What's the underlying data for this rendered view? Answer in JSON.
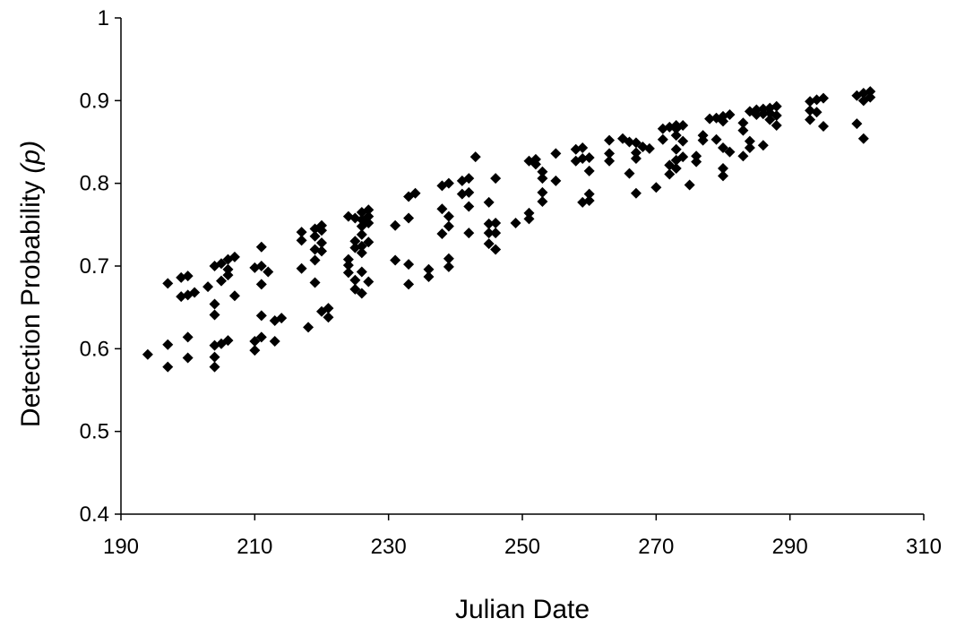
{
  "chart_data": {
    "type": "scatter",
    "title": "",
    "xlabel": "Julian Date",
    "ylabel_main": "Detection Probability ",
    "ylabel_symbol": "(p)",
    "xlim": [
      190,
      310
    ],
    "ylim": [
      0.4,
      1.0
    ],
    "x_ticks": [
      190,
      210,
      230,
      250,
      270,
      290,
      310
    ],
    "y_ticks": [
      0.4,
      0.5,
      0.6,
      0.7,
      0.8,
      0.9,
      1.0
    ],
    "x_tick_labels": [
      "190",
      "210",
      "230",
      "250",
      "270",
      "290",
      "310"
    ],
    "y_tick_labels": [
      "0.4",
      "0.5",
      "0.6",
      "0.7",
      "0.8",
      "0.9",
      "1"
    ],
    "grid": false,
    "legend": "none",
    "marker": "diamond",
    "marker_color": "#000000",
    "points": [
      [
        194,
        0.593
      ],
      [
        197,
        0.679
      ],
      [
        197,
        0.605
      ],
      [
        197,
        0.578
      ],
      [
        199,
        0.686
      ],
      [
        199,
        0.663
      ],
      [
        200,
        0.688
      ],
      [
        200,
        0.665
      ],
      [
        200,
        0.614
      ],
      [
        200,
        0.589
      ],
      [
        201,
        0.668
      ],
      [
        203,
        0.675
      ],
      [
        204,
        0.7
      ],
      [
        204,
        0.654
      ],
      [
        204,
        0.641
      ],
      [
        204,
        0.604
      ],
      [
        204,
        0.59
      ],
      [
        204,
        0.578
      ],
      [
        205,
        0.703
      ],
      [
        205,
        0.682
      ],
      [
        205,
        0.606
      ],
      [
        206,
        0.708
      ],
      [
        206,
        0.696
      ],
      [
        206,
        0.689
      ],
      [
        206,
        0.61
      ],
      [
        207,
        0.711
      ],
      [
        207,
        0.664
      ],
      [
        210,
        0.698
      ],
      [
        210,
        0.609
      ],
      [
        210,
        0.598
      ],
      [
        211,
        0.723
      ],
      [
        211,
        0.7
      ],
      [
        211,
        0.678
      ],
      [
        211,
        0.64
      ],
      [
        211,
        0.614
      ],
      [
        212,
        0.693
      ],
      [
        213,
        0.634
      ],
      [
        213,
        0.609
      ],
      [
        214,
        0.637
      ],
      [
        217,
        0.741
      ],
      [
        217,
        0.731
      ],
      [
        217,
        0.697
      ],
      [
        218,
        0.626
      ],
      [
        219,
        0.745
      ],
      [
        219,
        0.736
      ],
      [
        219,
        0.72
      ],
      [
        219,
        0.707
      ],
      [
        219,
        0.68
      ],
      [
        220,
        0.749
      ],
      [
        220,
        0.743
      ],
      [
        220,
        0.728
      ],
      [
        220,
        0.718
      ],
      [
        220,
        0.645
      ],
      [
        221,
        0.649
      ],
      [
        221,
        0.638
      ],
      [
        224,
        0.76
      ],
      [
        224,
        0.708
      ],
      [
        224,
        0.701
      ],
      [
        224,
        0.692
      ],
      [
        225,
        0.758
      ],
      [
        225,
        0.73
      ],
      [
        225,
        0.722
      ],
      [
        225,
        0.683
      ],
      [
        225,
        0.672
      ],
      [
        226,
        0.765
      ],
      [
        226,
        0.756
      ],
      [
        226,
        0.748
      ],
      [
        226,
        0.738
      ],
      [
        226,
        0.724
      ],
      [
        226,
        0.716
      ],
      [
        226,
        0.693
      ],
      [
        226,
        0.667
      ],
      [
        227,
        0.768
      ],
      [
        227,
        0.76
      ],
      [
        227,
        0.752
      ],
      [
        227,
        0.729
      ],
      [
        227,
        0.681
      ],
      [
        231,
        0.749
      ],
      [
        231,
        0.707
      ],
      [
        233,
        0.784
      ],
      [
        233,
        0.758
      ],
      [
        233,
        0.702
      ],
      [
        233,
        0.678
      ],
      [
        234,
        0.788
      ],
      [
        236,
        0.696
      ],
      [
        236,
        0.687
      ],
      [
        238,
        0.797
      ],
      [
        238,
        0.769
      ],
      [
        238,
        0.739
      ],
      [
        239,
        0.8
      ],
      [
        239,
        0.76
      ],
      [
        239,
        0.748
      ],
      [
        239,
        0.709
      ],
      [
        239,
        0.699
      ],
      [
        241,
        0.803
      ],
      [
        241,
        0.787
      ],
      [
        242,
        0.806
      ],
      [
        242,
        0.789
      ],
      [
        242,
        0.772
      ],
      [
        242,
        0.74
      ],
      [
        243,
        0.832
      ],
      [
        245,
        0.777
      ],
      [
        245,
        0.751
      ],
      [
        245,
        0.74
      ],
      [
        245,
        0.727
      ],
      [
        246,
        0.806
      ],
      [
        246,
        0.752
      ],
      [
        246,
        0.74
      ],
      [
        246,
        0.72
      ],
      [
        249,
        0.752
      ],
      [
        251,
        0.827
      ],
      [
        251,
        0.764
      ],
      [
        251,
        0.757
      ],
      [
        252,
        0.829
      ],
      [
        252,
        0.823
      ],
      [
        253,
        0.814
      ],
      [
        253,
        0.806
      ],
      [
        253,
        0.789
      ],
      [
        253,
        0.778
      ],
      [
        255,
        0.836
      ],
      [
        255,
        0.803
      ],
      [
        258,
        0.841
      ],
      [
        258,
        0.827
      ],
      [
        259,
        0.843
      ],
      [
        259,
        0.83
      ],
      [
        259,
        0.777
      ],
      [
        260,
        0.831
      ],
      [
        260,
        0.815
      ],
      [
        260,
        0.787
      ],
      [
        260,
        0.779
      ],
      [
        263,
        0.852
      ],
      [
        263,
        0.836
      ],
      [
        263,
        0.827
      ],
      [
        265,
        0.854
      ],
      [
        266,
        0.85
      ],
      [
        266,
        0.812
      ],
      [
        267,
        0.849
      ],
      [
        267,
        0.837
      ],
      [
        267,
        0.83
      ],
      [
        267,
        0.788
      ],
      [
        268,
        0.844
      ],
      [
        269,
        0.842
      ],
      [
        270,
        0.795
      ],
      [
        271,
        0.866
      ],
      [
        271,
        0.853
      ],
      [
        272,
        0.868
      ],
      [
        272,
        0.822
      ],
      [
        272,
        0.811
      ],
      [
        273,
        0.87
      ],
      [
        273,
        0.866
      ],
      [
        273,
        0.858
      ],
      [
        273,
        0.841
      ],
      [
        273,
        0.828
      ],
      [
        273,
        0.818
      ],
      [
        274,
        0.87
      ],
      [
        274,
        0.851
      ],
      [
        274,
        0.832
      ],
      [
        275,
        0.798
      ],
      [
        276,
        0.833
      ],
      [
        276,
        0.826
      ],
      [
        277,
        0.858
      ],
      [
        277,
        0.852
      ],
      [
        278,
        0.878
      ],
      [
        279,
        0.879
      ],
      [
        279,
        0.853
      ],
      [
        280,
        0.881
      ],
      [
        280,
        0.875
      ],
      [
        280,
        0.843
      ],
      [
        280,
        0.818
      ],
      [
        280,
        0.809
      ],
      [
        281,
        0.883
      ],
      [
        281,
        0.838
      ],
      [
        283,
        0.873
      ],
      [
        283,
        0.864
      ],
      [
        283,
        0.833
      ],
      [
        284,
        0.887
      ],
      [
        284,
        0.851
      ],
      [
        284,
        0.843
      ],
      [
        285,
        0.889
      ],
      [
        285,
        0.883
      ],
      [
        286,
        0.89
      ],
      [
        286,
        0.884
      ],
      [
        286,
        0.846
      ],
      [
        287,
        0.891
      ],
      [
        287,
        0.885
      ],
      [
        287,
        0.877
      ],
      [
        288,
        0.893
      ],
      [
        288,
        0.882
      ],
      [
        288,
        0.87
      ],
      [
        293,
        0.899
      ],
      [
        293,
        0.888
      ],
      [
        293,
        0.877
      ],
      [
        294,
        0.901
      ],
      [
        294,
        0.886
      ],
      [
        295,
        0.903
      ],
      [
        295,
        0.869
      ],
      [
        300,
        0.906
      ],
      [
        300,
        0.872
      ],
      [
        301,
        0.909
      ],
      [
        301,
        0.9
      ],
      [
        301,
        0.854
      ],
      [
        302,
        0.911
      ],
      [
        302,
        0.904
      ]
    ]
  }
}
